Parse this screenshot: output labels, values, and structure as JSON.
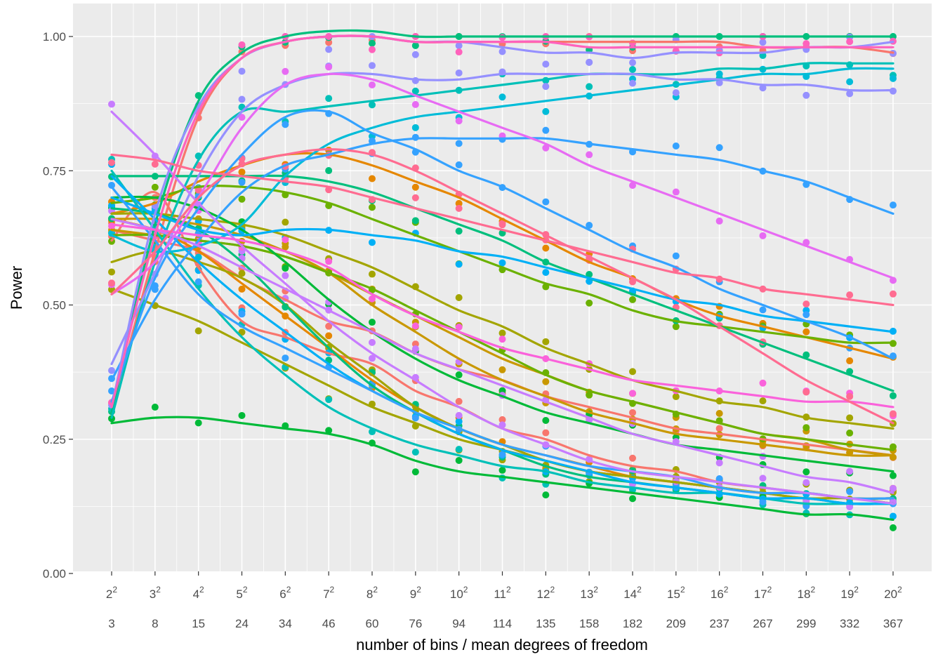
{
  "chart_data": {
    "type": "scatter",
    "xlabel": "number of bins / mean degrees of freedom",
    "ylabel": "Power",
    "ylim": [
      0,
      1
    ],
    "yticks": [
      "0.00",
      "0.25",
      "0.50",
      "0.75",
      "1.00"
    ],
    "x_bins_base": [
      "2",
      "3",
      "4",
      "5",
      "6",
      "7",
      "8",
      "9",
      "10",
      "11",
      "12",
      "13",
      "14",
      "15",
      "16",
      "17",
      "18",
      "19",
      "20"
    ],
    "x_exponent": "2",
    "x_dof": [
      "3",
      "8",
      "15",
      "24",
      "34",
      "46",
      "60",
      "76",
      "94",
      "114",
      "135",
      "158",
      "182",
      "209",
      "237",
      "267",
      "299",
      "332",
      "367"
    ],
    "grid": true,
    "legend": "none",
    "series": [
      {
        "color": "#F8766D",
        "values": [
          0.62,
          0.71,
          0.57,
          0.47,
          0.44,
          0.41,
          0.39,
          0.34,
          0.31,
          0.27,
          0.25,
          0.22,
          0.2,
          0.19,
          0.17,
          0.16,
          0.15,
          0.14,
          0.14
        ]
      },
      {
        "color": "#F8766D",
        "values": [
          0.3,
          0.6,
          0.85,
          0.96,
          0.99,
          1.0,
          1.0,
          0.99,
          0.99,
          0.99,
          0.99,
          0.99,
          0.99,
          0.99,
          0.99,
          0.98,
          0.98,
          0.98,
          0.97
        ]
      },
      {
        "color": "#F8766D",
        "values": [
          0.64,
          0.62,
          0.6,
          0.55,
          0.51,
          0.47,
          0.45,
          0.41,
          0.38,
          0.36,
          0.33,
          0.31,
          0.29,
          0.27,
          0.26,
          0.25,
          0.24,
          0.23,
          0.22
        ]
      },
      {
        "color": "#E58700",
        "values": [
          0.67,
          0.69,
          0.73,
          0.76,
          0.78,
          0.78,
          0.76,
          0.73,
          0.7,
          0.66,
          0.62,
          0.58,
          0.55,
          0.51,
          0.48,
          0.46,
          0.44,
          0.42,
          0.4
        ]
      },
      {
        "color": "#E58700",
        "values": [
          0.66,
          0.64,
          0.6,
          0.54,
          0.48,
          0.42,
          0.36,
          0.31,
          0.27,
          0.24,
          0.22,
          0.2,
          0.18,
          0.17,
          0.16,
          0.15,
          0.14,
          0.14,
          0.13
        ]
      },
      {
        "color": "#C99800",
        "values": [
          0.64,
          0.63,
          0.62,
          0.61,
          0.59,
          0.56,
          0.52,
          0.48,
          0.44,
          0.4,
          0.37,
          0.34,
          0.32,
          0.3,
          0.28,
          0.26,
          0.25,
          0.23,
          0.22
        ]
      },
      {
        "color": "#C99800",
        "values": [
          0.66,
          0.66,
          0.65,
          0.63,
          0.6,
          0.56,
          0.5,
          0.45,
          0.4,
          0.36,
          0.33,
          0.3,
          0.28,
          0.26,
          0.25,
          0.24,
          0.23,
          0.22,
          0.22
        ]
      },
      {
        "color": "#A3A500",
        "values": [
          0.58,
          0.6,
          0.58,
          0.55,
          0.5,
          0.43,
          0.37,
          0.31,
          0.27,
          0.24,
          0.21,
          0.19,
          0.18,
          0.17,
          0.16,
          0.15,
          0.15,
          0.14,
          0.14
        ]
      },
      {
        "color": "#A3A500",
        "values": [
          0.53,
          0.5,
          0.47,
          0.43,
          0.39,
          0.35,
          0.31,
          0.28,
          0.25,
          0.23,
          0.21,
          0.19,
          0.18,
          0.17,
          0.16,
          0.15,
          0.14,
          0.14,
          0.13
        ]
      },
      {
        "color": "#A3A500",
        "values": [
          0.67,
          0.67,
          0.66,
          0.65,
          0.63,
          0.6,
          0.57,
          0.53,
          0.49,
          0.46,
          0.42,
          0.39,
          0.36,
          0.34,
          0.32,
          0.31,
          0.29,
          0.28,
          0.27
        ]
      },
      {
        "color": "#6BB100",
        "values": [
          0.63,
          0.63,
          0.62,
          0.61,
          0.59,
          0.56,
          0.53,
          0.49,
          0.45,
          0.41,
          0.37,
          0.34,
          0.32,
          0.3,
          0.28,
          0.26,
          0.25,
          0.24,
          0.23
        ]
      },
      {
        "color": "#6BB100",
        "values": [
          0.69,
          0.7,
          0.72,
          0.72,
          0.71,
          0.69,
          0.66,
          0.63,
          0.6,
          0.57,
          0.54,
          0.52,
          0.49,
          0.47,
          0.46,
          0.45,
          0.44,
          0.43,
          0.43
        ]
      },
      {
        "color": "#00BA38",
        "values": [
          0.28,
          0.29,
          0.29,
          0.28,
          0.27,
          0.26,
          0.24,
          0.21,
          0.19,
          0.18,
          0.17,
          0.16,
          0.15,
          0.14,
          0.13,
          0.12,
          0.11,
          0.11,
          0.1
        ]
      },
      {
        "color": "#00BA38",
        "values": [
          0.7,
          0.7,
          0.68,
          0.64,
          0.58,
          0.51,
          0.45,
          0.4,
          0.36,
          0.33,
          0.3,
          0.28,
          0.26,
          0.24,
          0.23,
          0.22,
          0.21,
          0.2,
          0.19
        ]
      },
      {
        "color": "#00BF7D",
        "values": [
          0.74,
          0.74,
          0.74,
          0.74,
          0.74,
          0.73,
          0.71,
          0.68,
          0.65,
          0.62,
          0.58,
          0.55,
          0.52,
          0.49,
          0.46,
          0.43,
          0.4,
          0.37,
          0.34
        ]
      },
      {
        "color": "#00BF7D",
        "values": [
          0.68,
          0.67,
          0.64,
          0.58,
          0.5,
          0.42,
          0.35,
          0.3,
          0.26,
          0.23,
          0.2,
          0.18,
          0.17,
          0.16,
          0.15,
          0.14,
          0.14,
          0.13,
          0.13
        ]
      },
      {
        "color": "#00BF7D",
        "values": [
          0.3,
          0.65,
          0.88,
          0.97,
          1.0,
          1.01,
          1.01,
          1.0,
          1.0,
          1.0,
          1.0,
          1.0,
          1.0,
          1.0,
          1.0,
          1.0,
          1.0,
          1.0,
          1.0
        ]
      },
      {
        "color": "#00C0B8",
        "values": [
          0.29,
          0.58,
          0.77,
          0.86,
          0.86,
          0.87,
          0.88,
          0.89,
          0.9,
          0.91,
          0.92,
          0.93,
          0.93,
          0.93,
          0.94,
          0.94,
          0.95,
          0.95,
          0.95
        ]
      },
      {
        "color": "#00C0B8",
        "values": [
          0.75,
          0.64,
          0.53,
          0.44,
          0.37,
          0.31,
          0.27,
          0.24,
          0.22,
          0.2,
          0.19,
          0.17,
          0.16,
          0.15,
          0.15,
          0.14,
          0.13,
          0.13,
          0.13
        ]
      },
      {
        "color": "#00BCD8",
        "values": [
          0.63,
          0.6,
          0.61,
          0.65,
          0.74,
          0.8,
          0.83,
          0.85,
          0.86,
          0.87,
          0.88,
          0.89,
          0.9,
          0.91,
          0.92,
          0.93,
          0.93,
          0.94,
          0.94
        ]
      },
      {
        "color": "#00B0F6",
        "values": [
          0.7,
          0.67,
          0.64,
          0.63,
          0.64,
          0.64,
          0.63,
          0.62,
          0.6,
          0.59,
          0.57,
          0.55,
          0.53,
          0.51,
          0.5,
          0.48,
          0.47,
          0.46,
          0.45
        ]
      },
      {
        "color": "#00B0F6",
        "values": [
          0.74,
          0.66,
          0.58,
          0.51,
          0.45,
          0.39,
          0.34,
          0.3,
          0.26,
          0.23,
          0.21,
          0.19,
          0.17,
          0.16,
          0.15,
          0.14,
          0.14,
          0.13,
          0.13
        ]
      },
      {
        "color": "#35A2FF",
        "values": [
          0.36,
          0.51,
          0.62,
          0.71,
          0.76,
          0.78,
          0.8,
          0.81,
          0.81,
          0.81,
          0.81,
          0.8,
          0.79,
          0.78,
          0.77,
          0.75,
          0.73,
          0.7,
          0.67
        ]
      },
      {
        "color": "#35A2FF",
        "values": [
          0.72,
          0.62,
          0.52,
          0.46,
          0.42,
          0.38,
          0.34,
          0.3,
          0.27,
          0.24,
          0.22,
          0.2,
          0.19,
          0.18,
          0.16,
          0.15,
          0.15,
          0.14,
          0.14
        ]
      },
      {
        "color": "#35A2FF",
        "values": [
          0.32,
          0.55,
          0.68,
          0.78,
          0.85,
          0.86,
          0.82,
          0.79,
          0.75,
          0.72,
          0.68,
          0.64,
          0.6,
          0.57,
          0.53,
          0.5,
          0.47,
          0.44,
          0.4
        ]
      },
      {
        "color": "#9590FF",
        "values": [
          0.39,
          0.56,
          0.74,
          0.86,
          0.91,
          0.93,
          0.93,
          0.92,
          0.92,
          0.93,
          0.93,
          0.93,
          0.93,
          0.92,
          0.92,
          0.91,
          0.91,
          0.9,
          0.9
        ]
      },
      {
        "color": "#9590FF",
        "values": [
          0.31,
          0.67,
          0.87,
          0.96,
          0.99,
          1.0,
          1.0,
          0.99,
          0.99,
          0.98,
          0.97,
          0.97,
          0.96,
          0.97,
          0.97,
          0.97,
          0.98,
          0.98,
          0.99
        ]
      },
      {
        "color": "#C77CFF",
        "values": [
          0.86,
          0.78,
          0.69,
          0.61,
          0.54,
          0.47,
          0.41,
          0.36,
          0.31,
          0.27,
          0.24,
          0.21,
          0.19,
          0.18,
          0.17,
          0.16,
          0.15,
          0.14,
          0.13
        ]
      },
      {
        "color": "#C77CFF",
        "values": [
          0.66,
          0.64,
          0.61,
          0.57,
          0.53,
          0.49,
          0.45,
          0.41,
          0.38,
          0.35,
          0.32,
          0.29,
          0.26,
          0.24,
          0.22,
          0.2,
          0.18,
          0.17,
          0.15
        ]
      },
      {
        "color": "#E76BF3",
        "values": [
          0.52,
          0.58,
          0.7,
          0.83,
          0.91,
          0.93,
          0.92,
          0.89,
          0.86,
          0.83,
          0.8,
          0.76,
          0.73,
          0.7,
          0.67,
          0.64,
          0.61,
          0.58,
          0.55
        ]
      },
      {
        "color": "#FA62DB",
        "values": [
          0.65,
          0.64,
          0.63,
          0.62,
          0.6,
          0.57,
          0.52,
          0.48,
          0.45,
          0.42,
          0.4,
          0.38,
          0.36,
          0.35,
          0.34,
          0.33,
          0.32,
          0.32,
          0.31
        ]
      },
      {
        "color": "#FF62BC",
        "values": [
          0.31,
          0.63,
          0.86,
          0.96,
          0.99,
          1.0,
          1.0,
          0.99,
          0.99,
          0.99,
          0.99,
          0.98,
          0.98,
          0.98,
          0.98,
          0.98,
          0.98,
          0.98,
          0.98
        ]
      },
      {
        "color": "#FF6C91",
        "values": [
          0.78,
          0.77,
          0.75,
          0.74,
          0.73,
          0.72,
          0.7,
          0.68,
          0.66,
          0.64,
          0.62,
          0.6,
          0.58,
          0.56,
          0.55,
          0.53,
          0.52,
          0.51,
          0.5
        ]
      },
      {
        "color": "#FF6C91",
        "values": [
          0.52,
          0.6,
          0.7,
          0.76,
          0.78,
          0.79,
          0.78,
          0.75,
          0.71,
          0.67,
          0.63,
          0.59,
          0.55,
          0.51,
          0.46,
          0.41,
          0.36,
          0.32,
          0.28
        ]
      }
    ]
  }
}
